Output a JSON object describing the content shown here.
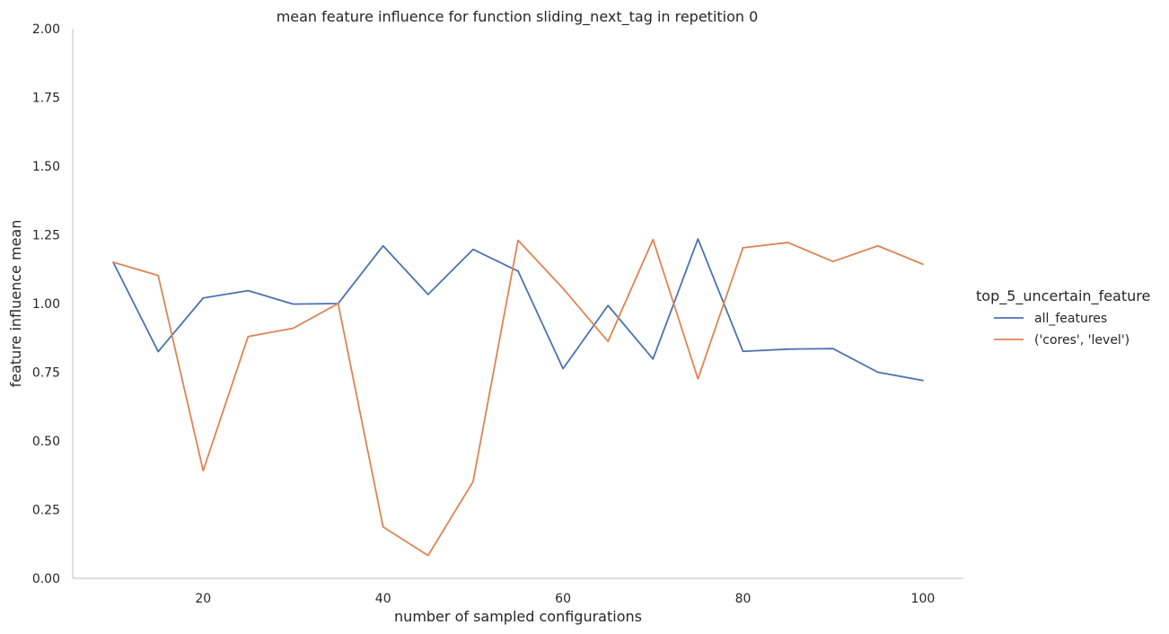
{
  "chart_data": {
    "type": "line",
    "title": "mean feature influence for function sliding_next_tag in repetition 0",
    "xlabel": "number of sampled configurations",
    "ylabel": "feature influence mean",
    "xlim": [
      5.5,
      104.5
    ],
    "ylim": [
      0,
      2
    ],
    "xticks": [
      20,
      40,
      60,
      80,
      100
    ],
    "yticks": [
      0.0,
      0.25,
      0.5,
      0.75,
      1.0,
      1.25,
      1.5,
      1.75,
      2.0
    ],
    "xtick_labels": [
      "20",
      "40",
      "60",
      "80",
      "100"
    ],
    "ytick_labels": [
      "0.00",
      "0.25",
      "0.50",
      "0.75",
      "1.00",
      "1.25",
      "1.50",
      "1.75",
      "2.00"
    ],
    "grid": false,
    "legend": {
      "title": "top_5_uncertain_feature",
      "placement": "right"
    },
    "x": [
      10,
      15,
      20,
      25,
      30,
      35,
      40,
      45,
      50,
      55,
      60,
      65,
      70,
      75,
      80,
      85,
      90,
      95,
      100
    ],
    "series": [
      {
        "name": "all_features",
        "color": "#4c72b0",
        "values": [
          1.15,
          0.825,
          1.02,
          1.047,
          0.998,
          1.0,
          1.21,
          1.033,
          1.197,
          1.118,
          0.763,
          0.993,
          0.798,
          1.235,
          0.826,
          0.834,
          0.836,
          0.75,
          0.72
        ]
      },
      {
        "name": "('cores', 'level')",
        "color": "#dd8452",
        "values": [
          1.15,
          1.102,
          0.392,
          0.88,
          0.91,
          1.0,
          0.187,
          0.083,
          0.352,
          1.23,
          1.055,
          0.862,
          1.233,
          0.726,
          1.203,
          1.222,
          1.153,
          1.21,
          1.143
        ]
      }
    ]
  }
}
